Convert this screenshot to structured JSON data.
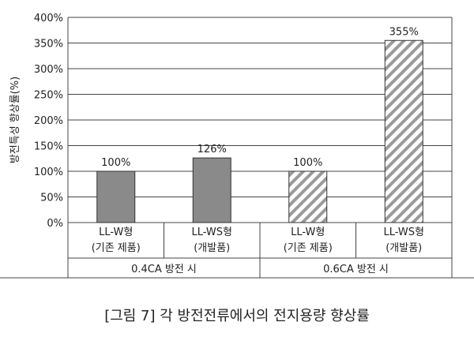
{
  "chart_data": {
    "type": "bar",
    "ylabel": "방전특성 향상률(%)",
    "ylim": [
      0,
      400
    ],
    "yticks": [
      0,
      50,
      100,
      150,
      200,
      250,
      300,
      350,
      400
    ],
    "ytick_labels": [
      "0%",
      "50%",
      "100%",
      "150%",
      "200%",
      "250%",
      "300%",
      "350%",
      "400%"
    ],
    "grid": true,
    "bars": [
      {
        "line1": "LL-W형",
        "line2": "(기존 제품)",
        "value": 100,
        "label": "100%",
        "fill": "solid",
        "group": 0
      },
      {
        "line1": "LL-WS형",
        "line2": "(개발품)",
        "value": 126,
        "label": "126%",
        "fill": "solid",
        "group": 0
      },
      {
        "line1": "LL-W형",
        "line2": "(기존 제품)",
        "value": 100,
        "label": "100%",
        "fill": "hatched",
        "group": 1
      },
      {
        "line1": "LL-WS형",
        "line2": "(개발품)",
        "value": 355,
        "label": "355%",
        "fill": "hatched",
        "group": 1
      }
    ],
    "groups": [
      "0.4CA 방전 시",
      "0.6CA 방전 시"
    ],
    "colors": {
      "solid": "#8a8a8a",
      "hatch": "#9a9a9a",
      "edge": "#333333",
      "grid": "#444444"
    }
  },
  "caption": "[그림 7] 각 방전전류에서의 전지용량 향상률"
}
